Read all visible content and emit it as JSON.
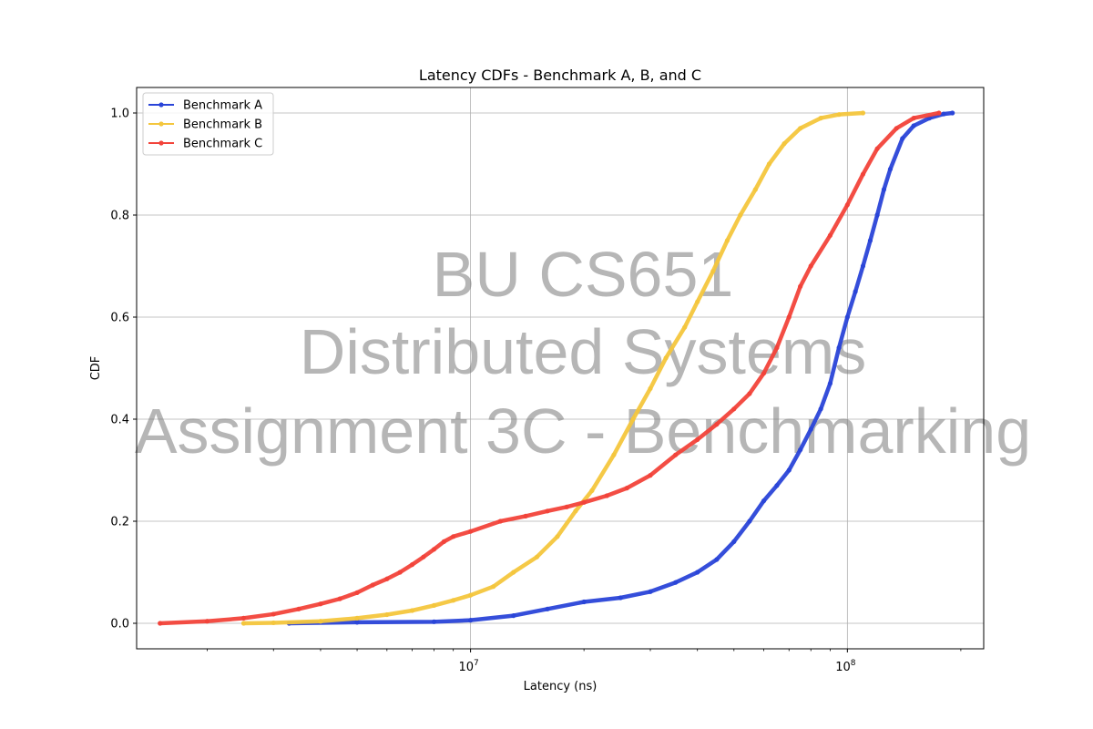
{
  "chart_data": {
    "type": "line",
    "title": "Latency CDFs - Benchmark A, B, and C",
    "xlabel": "Latency (ns)",
    "ylabel": "CDF",
    "xscale": "log",
    "xlim": [
      1300000.0,
      230000000.0
    ],
    "ylim": [
      -0.05,
      1.05
    ],
    "x_ticks": [
      {
        "value": 10000000.0,
        "base": "10",
        "exp": "7"
      },
      {
        "value": 100000000.0,
        "base": "10",
        "exp": "8"
      }
    ],
    "y_ticks": [
      "0.0",
      "0.2",
      "0.4",
      "0.6",
      "0.8",
      "1.0"
    ],
    "grid": true,
    "legend_position": "upper-left",
    "watermark": [
      "BU CS651",
      "Distributed Systems",
      "Assignment 3C - Benchmarking"
    ],
    "series": [
      {
        "name": "Benchmark A",
        "color": "#2a45d8",
        "points": [
          [
            3300000.0,
            0.0
          ],
          [
            5000000.0,
            0.002
          ],
          [
            8000000.0,
            0.003
          ],
          [
            10000000.0,
            0.006
          ],
          [
            13000000.0,
            0.015
          ],
          [
            16000000.0,
            0.028
          ],
          [
            20000000.0,
            0.042
          ],
          [
            25000000.0,
            0.05
          ],
          [
            30000000.0,
            0.062
          ],
          [
            35000000.0,
            0.08
          ],
          [
            40000000.0,
            0.1
          ],
          [
            45000000.0,
            0.125
          ],
          [
            50000000.0,
            0.16
          ],
          [
            55000000.0,
            0.2
          ],
          [
            60000000.0,
            0.24
          ],
          [
            65000000.0,
            0.27
          ],
          [
            70000000.0,
            0.3
          ],
          [
            75000000.0,
            0.34
          ],
          [
            80000000.0,
            0.38
          ],
          [
            85000000.0,
            0.42
          ],
          [
            90000000.0,
            0.47
          ],
          [
            95000000.0,
            0.54
          ],
          [
            100000000.0,
            0.6
          ],
          [
            105000000.0,
            0.65
          ],
          [
            110000000.0,
            0.7
          ],
          [
            115000000.0,
            0.75
          ],
          [
            120000000.0,
            0.8
          ],
          [
            125000000.0,
            0.85
          ],
          [
            130000000.0,
            0.89
          ],
          [
            140000000.0,
            0.95
          ],
          [
            150000000.0,
            0.975
          ],
          [
            165000000.0,
            0.99
          ],
          [
            180000000.0,
            0.998
          ],
          [
            190000000.0,
            1.0
          ]
        ]
      },
      {
        "name": "Benchmark B",
        "color": "#f4c63d",
        "points": [
          [
            2500000.0,
            0.0
          ],
          [
            3000000.0,
            0.001
          ],
          [
            4000000.0,
            0.004
          ],
          [
            5000000.0,
            0.01
          ],
          [
            6000000.0,
            0.017
          ],
          [
            7000000.0,
            0.025
          ],
          [
            8000000.0,
            0.035
          ],
          [
            9000000.0,
            0.045
          ],
          [
            10000000.0,
            0.055
          ],
          [
            11500000.0,
            0.072
          ],
          [
            13000000.0,
            0.1
          ],
          [
            15000000.0,
            0.13
          ],
          [
            17000000.0,
            0.17
          ],
          [
            19000000.0,
            0.22
          ],
          [
            21000000.0,
            0.26
          ],
          [
            24000000.0,
            0.33
          ],
          [
            27000000.0,
            0.4
          ],
          [
            30000000.0,
            0.46
          ],
          [
            33000000.0,
            0.52
          ],
          [
            37000000.0,
            0.58
          ],
          [
            40000000.0,
            0.63
          ],
          [
            44000000.0,
            0.69
          ],
          [
            48000000.0,
            0.75
          ],
          [
            52000000.0,
            0.8
          ],
          [
            57000000.0,
            0.85
          ],
          [
            62000000.0,
            0.9
          ],
          [
            68000000.0,
            0.94
          ],
          [
            75000000.0,
            0.97
          ],
          [
            85000000.0,
            0.99
          ],
          [
            95000000.0,
            0.997
          ],
          [
            110000000.0,
            1.0
          ]
        ]
      },
      {
        "name": "Benchmark C",
        "color": "#f2433a",
        "points": [
          [
            1500000.0,
            0.0
          ],
          [
            2000000.0,
            0.004
          ],
          [
            2500000.0,
            0.01
          ],
          [
            3000000.0,
            0.018
          ],
          [
            3500000.0,
            0.028
          ],
          [
            4000000.0,
            0.038
          ],
          [
            4500000.0,
            0.048
          ],
          [
            5000000.0,
            0.06
          ],
          [
            5500000.0,
            0.075
          ],
          [
            6000000.0,
            0.087
          ],
          [
            6500000.0,
            0.1
          ],
          [
            7000000.0,
            0.115
          ],
          [
            7500000.0,
            0.13
          ],
          [
            8000000.0,
            0.145
          ],
          [
            8500000.0,
            0.16
          ],
          [
            9000000.0,
            0.17
          ],
          [
            10000000.0,
            0.18
          ],
          [
            12000000.0,
            0.2
          ],
          [
            14000000.0,
            0.21
          ],
          [
            16000000.0,
            0.22
          ],
          [
            18000000.0,
            0.228
          ],
          [
            20000000.0,
            0.237
          ],
          [
            23000000.0,
            0.25
          ],
          [
            26000000.0,
            0.265
          ],
          [
            30000000.0,
            0.29
          ],
          [
            35000000.0,
            0.33
          ],
          [
            40000000.0,
            0.36
          ],
          [
            45000000.0,
            0.39
          ],
          [
            50000000.0,
            0.42
          ],
          [
            55000000.0,
            0.45
          ],
          [
            60000000.0,
            0.49
          ],
          [
            65000000.0,
            0.54
          ],
          [
            70000000.0,
            0.6
          ],
          [
            75000000.0,
            0.66
          ],
          [
            80000000.0,
            0.7
          ],
          [
            90000000.0,
            0.76
          ],
          [
            100000000.0,
            0.82
          ],
          [
            110000000.0,
            0.88
          ],
          [
            120000000.0,
            0.93
          ],
          [
            135000000.0,
            0.97
          ],
          [
            150000000.0,
            0.99
          ],
          [
            175000000.0,
            1.0
          ]
        ]
      }
    ]
  }
}
